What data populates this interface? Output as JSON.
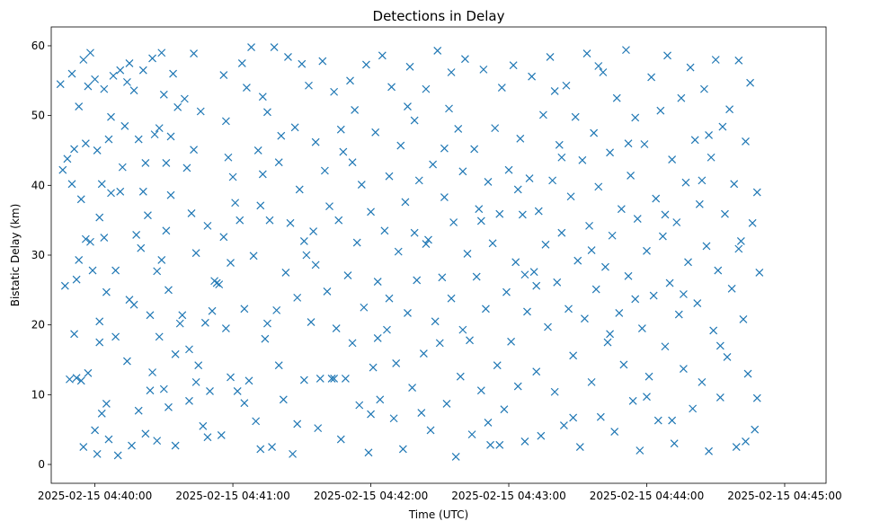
{
  "chart_data": {
    "type": "scatter",
    "title": "Detections in Delay",
    "xlabel": "Time (UTC)",
    "ylabel": "Bistatic Delay (km)",
    "x_unit": "seconds since 2025-02-15 04:40:00 UTC",
    "xlim": [
      -19.0,
      318.0
    ],
    "ylim": [
      -2.7,
      62.7
    ],
    "x_ticks": [
      {
        "value": 0,
        "label": "2025-02-15 04:40:00"
      },
      {
        "value": 60,
        "label": "2025-02-15 04:41:00"
      },
      {
        "value": 120,
        "label": "2025-02-15 04:42:00"
      },
      {
        "value": 180,
        "label": "2025-02-15 04:43:00"
      },
      {
        "value": 240,
        "label": "2025-02-15 04:44:00"
      },
      {
        "value": 300,
        "label": "2025-02-15 04:45:00"
      }
    ],
    "y_ticks": [
      {
        "value": 0,
        "label": "0"
      },
      {
        "value": 10,
        "label": "10"
      },
      {
        "value": 20,
        "label": "20"
      },
      {
        "value": 30,
        "label": "30"
      },
      {
        "value": 40,
        "label": "40"
      },
      {
        "value": 50,
        "label": "50"
      },
      {
        "value": 60,
        "label": "60"
      }
    ],
    "marker": "x",
    "color": "#1f77b4",
    "points_note": "Approximate digitization of a dense random-looking scatter; values estimated from gridlines.",
    "points": [
      [
        -15,
        54.5
      ],
      [
        -14,
        42.2
      ],
      [
        -13,
        25.6
      ],
      [
        -12,
        43.8
      ],
      [
        -11,
        12.2
      ],
      [
        -10,
        40.2
      ],
      [
        -10,
        56.0
      ],
      [
        -9,
        45.2
      ],
      [
        -9,
        18.7
      ],
      [
        -8,
        26.5
      ],
      [
        -8,
        12.4
      ],
      [
        -7,
        51.3
      ],
      [
        -7,
        29.3
      ],
      [
        -6,
        38.0
      ],
      [
        -5,
        58.0
      ],
      [
        -5,
        2.5
      ],
      [
        -4,
        32.3
      ],
      [
        -4,
        46.0
      ],
      [
        -3,
        13.1
      ],
      [
        -2,
        59.0
      ],
      [
        -2,
        31.9
      ],
      [
        -1,
        27.8
      ],
      [
        0,
        55.2
      ],
      [
        0,
        4.9
      ],
      [
        1,
        1.5
      ],
      [
        1,
        45.0
      ],
      [
        2,
        20.5
      ],
      [
        2,
        17.5
      ],
      [
        3,
        7.3
      ],
      [
        3,
        40.2
      ],
      [
        4,
        53.8
      ],
      [
        4,
        32.5
      ],
      [
        5,
        8.7
      ],
      [
        5,
        24.7
      ],
      [
        6,
        46.6
      ],
      [
        6,
        3.6
      ],
      [
        7,
        49.8
      ],
      [
        7,
        38.9
      ],
      [
        8,
        55.7
      ],
      [
        9,
        18.3
      ],
      [
        10,
        1.3
      ],
      [
        11,
        56.5
      ],
      [
        12,
        42.6
      ],
      [
        13,
        48.5
      ],
      [
        14,
        54.8
      ],
      [
        14,
        14.8
      ],
      [
        15,
        57.5
      ],
      [
        15,
        23.6
      ],
      [
        16,
        2.7
      ],
      [
        17,
        53.6
      ],
      [
        18,
        32.9
      ],
      [
        19,
        46.6
      ],
      [
        19,
        7.7
      ],
      [
        20,
        31.0
      ],
      [
        21,
        56.5
      ],
      [
        21,
        39.1
      ],
      [
        22,
        43.2
      ],
      [
        22,
        4.4
      ],
      [
        23,
        35.7
      ],
      [
        24,
        21.4
      ],
      [
        25,
        58.2
      ],
      [
        25,
        13.2
      ],
      [
        26,
        47.3
      ],
      [
        27,
        3.4
      ],
      [
        28,
        18.3
      ],
      [
        28,
        48.2
      ],
      [
        29,
        59.0
      ],
      [
        29,
        29.3
      ],
      [
        30,
        10.8
      ],
      [
        30,
        53.0
      ],
      [
        31,
        43.2
      ],
      [
        31,
        33.5
      ],
      [
        32,
        25.0
      ],
      [
        32,
        8.2
      ],
      [
        33,
        38.6
      ],
      [
        34,
        56.0
      ],
      [
        35,
        2.7
      ],
      [
        35,
        15.8
      ],
      [
        36,
        51.2
      ],
      [
        37,
        20.2
      ],
      [
        38,
        21.4
      ],
      [
        39,
        52.4
      ],
      [
        40,
        42.5
      ],
      [
        41,
        9.1
      ],
      [
        42,
        36.0
      ],
      [
        43,
        58.9
      ],
      [
        44,
        30.3
      ],
      [
        44,
        11.8
      ],
      [
        45,
        14.2
      ],
      [
        46,
        50.6
      ],
      [
        47,
        5.5
      ],
      [
        48,
        20.3
      ],
      [
        49,
        34.2
      ],
      [
        50,
        10.5
      ],
      [
        51,
        22.0
      ],
      [
        52,
        26.3
      ],
      [
        53,
        26.0
      ],
      [
        54,
        25.8
      ],
      [
        55,
        4.2
      ],
      [
        56,
        55.8
      ],
      [
        56,
        32.6
      ],
      [
        57,
        19.5
      ],
      [
        58,
        44.0
      ],
      [
        59,
        12.5
      ],
      [
        60,
        41.2
      ],
      [
        61,
        37.5
      ],
      [
        62,
        10.5
      ],
      [
        63,
        35.0
      ],
      [
        64,
        57.5
      ],
      [
        65,
        22.3
      ],
      [
        66,
        54.0
      ],
      [
        67,
        12.0
      ],
      [
        68,
        59.8
      ],
      [
        69,
        29.9
      ],
      [
        70,
        6.2
      ],
      [
        71,
        45.0
      ],
      [
        72,
        2.2
      ],
      [
        72,
        37.1
      ],
      [
        73,
        52.7
      ],
      [
        74,
        18.0
      ],
      [
        75,
        50.5
      ],
      [
        76,
        35.0
      ],
      [
        77,
        2.5
      ],
      [
        78,
        59.8
      ],
      [
        79,
        22.1
      ],
      [
        80,
        43.3
      ],
      [
        81,
        47.1
      ],
      [
        82,
        9.3
      ],
      [
        83,
        27.5
      ],
      [
        84,
        58.4
      ],
      [
        85,
        34.6
      ],
      [
        86,
        1.5
      ],
      [
        87,
        48.3
      ],
      [
        88,
        23.9
      ],
      [
        89,
        39.4
      ],
      [
        90,
        57.4
      ],
      [
        91,
        12.1
      ],
      [
        92,
        30.0
      ],
      [
        93,
        54.3
      ],
      [
        94,
        20.4
      ],
      [
        95,
        33.4
      ],
      [
        96,
        46.2
      ],
      [
        97,
        5.2
      ],
      [
        98,
        12.3
      ],
      [
        99,
        57.8
      ],
      [
        100,
        42.1
      ],
      [
        101,
        24.8
      ],
      [
        102,
        37.0
      ],
      [
        103,
        12.3
      ],
      [
        104,
        53.4
      ],
      [
        105,
        19.5
      ],
      [
        106,
        35.0
      ],
      [
        107,
        3.6
      ],
      [
        108,
        44.8
      ],
      [
        109,
        12.3
      ],
      [
        110,
        27.1
      ],
      [
        111,
        55.0
      ],
      [
        112,
        17.4
      ],
      [
        113,
        50.8
      ],
      [
        114,
        31.8
      ],
      [
        115,
        8.5
      ],
      [
        116,
        40.1
      ],
      [
        117,
        22.5
      ],
      [
        118,
        57.3
      ],
      [
        119,
        1.7
      ],
      [
        120,
        36.2
      ],
      [
        121,
        13.9
      ],
      [
        122,
        47.6
      ],
      [
        123,
        26.2
      ],
      [
        124,
        9.3
      ],
      [
        125,
        58.6
      ],
      [
        126,
        33.5
      ],
      [
        127,
        19.3
      ],
      [
        128,
        41.3
      ],
      [
        129,
        54.1
      ],
      [
        130,
        6.6
      ],
      [
        131,
        14.5
      ],
      [
        132,
        30.5
      ],
      [
        133,
        45.7
      ],
      [
        134,
        2.2
      ],
      [
        135,
        37.6
      ],
      [
        136,
        21.7
      ],
      [
        137,
        57.0
      ],
      [
        138,
        11.0
      ],
      [
        139,
        49.3
      ],
      [
        140,
        26.4
      ],
      [
        141,
        40.7
      ],
      [
        142,
        7.4
      ],
      [
        143,
        15.9
      ],
      [
        144,
        53.8
      ],
      [
        145,
        32.2
      ],
      [
        146,
        4.9
      ],
      [
        147,
        43.0
      ],
      [
        148,
        20.5
      ],
      [
        149,
        59.3
      ],
      [
        150,
        17.4
      ],
      [
        151,
        26.8
      ],
      [
        152,
        38.3
      ],
      [
        153,
        8.7
      ],
      [
        154,
        51.0
      ],
      [
        155,
        23.8
      ],
      [
        156,
        34.7
      ],
      [
        157,
        1.1
      ],
      [
        158,
        48.1
      ],
      [
        159,
        12.6
      ],
      [
        160,
        42.0
      ],
      [
        161,
        58.1
      ],
      [
        162,
        30.2
      ],
      [
        163,
        17.8
      ],
      [
        164,
        4.3
      ],
      [
        165,
        45.2
      ],
      [
        166,
        26.9
      ],
      [
        167,
        36.6
      ],
      [
        168,
        10.6
      ],
      [
        169,
        56.6
      ],
      [
        170,
        22.3
      ],
      [
        171,
        40.5
      ],
      [
        172,
        2.8
      ],
      [
        173,
        31.7
      ],
      [
        174,
        48.2
      ],
      [
        175,
        14.2
      ],
      [
        176,
        35.9
      ],
      [
        177,
        54.0
      ],
      [
        178,
        7.9
      ],
      [
        179,
        24.7
      ],
      [
        180,
        42.2
      ],
      [
        181,
        17.6
      ],
      [
        182,
        57.2
      ],
      [
        183,
        29.0
      ],
      [
        184,
        11.2
      ],
      [
        185,
        46.7
      ],
      [
        186,
        35.8
      ],
      [
        187,
        3.3
      ],
      [
        188,
        21.9
      ],
      [
        189,
        41.0
      ],
      [
        190,
        55.6
      ],
      [
        191,
        27.6
      ],
      [
        192,
        13.3
      ],
      [
        193,
        36.3
      ],
      [
        194,
        4.1
      ],
      [
        195,
        50.1
      ],
      [
        196,
        31.5
      ],
      [
        197,
        19.7
      ],
      [
        198,
        58.4
      ],
      [
        199,
        40.7
      ],
      [
        200,
        10.4
      ],
      [
        201,
        26.1
      ],
      [
        202,
        45.8
      ],
      [
        203,
        33.2
      ],
      [
        204,
        5.6
      ],
      [
        205,
        54.3
      ],
      [
        206,
        22.3
      ],
      [
        207,
        38.4
      ],
      [
        208,
        15.6
      ],
      [
        209,
        49.8
      ],
      [
        210,
        29.2
      ],
      [
        211,
        2.5
      ],
      [
        212,
        43.6
      ],
      [
        213,
        20.9
      ],
      [
        214,
        58.9
      ],
      [
        215,
        34.2
      ],
      [
        216,
        11.8
      ],
      [
        217,
        47.5
      ],
      [
        218,
        25.1
      ],
      [
        219,
        39.8
      ],
      [
        220,
        6.8
      ],
      [
        221,
        56.2
      ],
      [
        222,
        28.3
      ],
      [
        223,
        17.5
      ],
      [
        224,
        44.7
      ],
      [
        225,
        32.8
      ],
      [
        226,
        4.7
      ],
      [
        227,
        52.5
      ],
      [
        228,
        21.7
      ],
      [
        229,
        36.6
      ],
      [
        230,
        14.3
      ],
      [
        231,
        59.4
      ],
      [
        232,
        27.0
      ],
      [
        233,
        41.4
      ],
      [
        234,
        9.1
      ],
      [
        235,
        49.7
      ],
      [
        236,
        35.2
      ],
      [
        237,
        2.0
      ],
      [
        238,
        19.5
      ],
      [
        239,
        45.9
      ],
      [
        240,
        30.6
      ],
      [
        241,
        12.6
      ],
      [
        242,
        55.5
      ],
      [
        243,
        24.2
      ],
      [
        244,
        38.1
      ],
      [
        245,
        6.3
      ],
      [
        246,
        50.7
      ],
      [
        247,
        32.7
      ],
      [
        248,
        16.9
      ],
      [
        249,
        58.6
      ],
      [
        250,
        26.0
      ],
      [
        251,
        43.7
      ],
      [
        252,
        3.0
      ],
      [
        253,
        34.7
      ],
      [
        254,
        21.5
      ],
      [
        255,
        52.5
      ],
      [
        256,
        13.7
      ],
      [
        257,
        40.4
      ],
      [
        258,
        29.0
      ],
      [
        259,
        56.9
      ],
      [
        260,
        8.0
      ],
      [
        261,
        46.5
      ],
      [
        262,
        23.1
      ],
      [
        263,
        37.3
      ],
      [
        264,
        11.8
      ],
      [
        265,
        53.8
      ],
      [
        266,
        31.3
      ],
      [
        267,
        1.9
      ],
      [
        268,
        44.0
      ],
      [
        269,
        19.2
      ],
      [
        270,
        58.0
      ],
      [
        271,
        27.8
      ],
      [
        272,
        9.6
      ],
      [
        273,
        48.4
      ],
      [
        274,
        35.9
      ],
      [
        275,
        15.4
      ],
      [
        276,
        50.9
      ],
      [
        277,
        25.2
      ],
      [
        278,
        40.2
      ],
      [
        279,
        2.5
      ],
      [
        280,
        57.9
      ],
      [
        281,
        32.0
      ],
      [
        282,
        20.8
      ],
      [
        283,
        46.3
      ],
      [
        284,
        13.0
      ],
      [
        285,
        54.7
      ],
      [
        286,
        34.6
      ],
      [
        287,
        5.0
      ],
      [
        288,
        39.0
      ],
      [
        289,
        27.5
      ],
      [
        -6,
        12.0
      ],
      [
        2,
        35.4
      ],
      [
        9,
        27.8
      ],
      [
        17,
        22.9
      ],
      [
        24,
        10.6
      ],
      [
        33,
        47.0
      ],
      [
        41,
        16.5
      ],
      [
        49,
        3.9
      ],
      [
        57,
        49.2
      ],
      [
        65,
        8.8
      ],
      [
        73,
        41.6
      ],
      [
        80,
        14.2
      ],
      [
        88,
        5.8
      ],
      [
        96,
        28.6
      ],
      [
        104,
        12.3
      ],
      [
        112,
        43.3
      ],
      [
        120,
        7.2
      ],
      [
        128,
        23.8
      ],
      [
        136,
        51.3
      ],
      [
        144,
        31.6
      ],
      [
        152,
        45.3
      ],
      [
        160,
        19.3
      ],
      [
        168,
        34.9
      ],
      [
        176,
        2.8
      ],
      [
        184,
        39.4
      ],
      [
        192,
        25.6
      ],
      [
        200,
        53.5
      ],
      [
        208,
        6.7
      ],
      [
        216,
        30.7
      ],
      [
        224,
        18.7
      ],
      [
        232,
        46.0
      ],
      [
        240,
        9.7
      ],
      [
        248,
        35.8
      ],
      [
        256,
        24.4
      ],
      [
        264,
        40.7
      ],
      [
        272,
        17.0
      ],
      [
        280,
        30.9
      ],
      [
        288,
        9.5
      ],
      [
        -3,
        54.2
      ],
      [
        11,
        39.1
      ],
      [
        27,
        27.7
      ],
      [
        43,
        45.1
      ],
      [
        59,
        28.9
      ],
      [
        75,
        20.2
      ],
      [
        91,
        32.0
      ],
      [
        107,
        48.0
      ],
      [
        123,
        18.1
      ],
      [
        139,
        33.2
      ],
      [
        155,
        56.2
      ],
      [
        171,
        6.0
      ],
      [
        187,
        27.2
      ],
      [
        203,
        44.0
      ],
      [
        219,
        57.1
      ],
      [
        235,
        23.7
      ],
      [
        251,
        6.3
      ],
      [
        267,
        47.2
      ],
      [
        283,
        3.3
      ]
    ]
  }
}
